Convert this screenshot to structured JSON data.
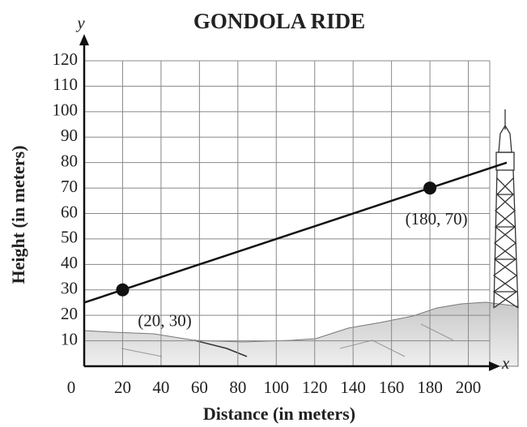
{
  "chart_data": {
    "type": "line",
    "title": "GONDOLA RIDE",
    "x_label": "Distance (in meters)",
    "y_label": "Height (in meters)",
    "x_axis_letter": "x",
    "y_axis_letter": "y",
    "xlim": [
      0,
      220
    ],
    "ylim": [
      0,
      120
    ],
    "xticks": [
      0,
      20,
      40,
      60,
      80,
      100,
      120,
      140,
      160,
      180,
      200
    ],
    "yticks": [
      10,
      20,
      30,
      40,
      50,
      60,
      70,
      80,
      90,
      100,
      110,
      120
    ],
    "grid": true,
    "series": [
      {
        "color": "#111111",
        "x": [
          0,
          220
        ],
        "values": [
          25,
          80
        ]
      }
    ],
    "points": {
      "color": "#111111",
      "x": [
        20,
        180
      ],
      "values": [
        30,
        70
      ],
      "labels": [
        "(20, 30)",
        "(180, 70)"
      ]
    }
  }
}
